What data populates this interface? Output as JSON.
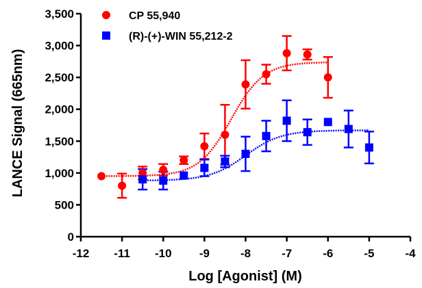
{
  "chart_data": {
    "type": "scatter",
    "title": "",
    "xlabel": "Log [Agonist] (M)",
    "ylabel": "LANCE Signal (665nm)",
    "xlim": [
      -12,
      -4
    ],
    "ylim": [
      0,
      3500
    ],
    "x_ticks": [
      "-12",
      "-11",
      "-10",
      "-9",
      "-8",
      "-7",
      "-6",
      "-5",
      "-4"
    ],
    "y_ticks": [
      "0",
      "500",
      "1,000",
      "1,500",
      "2,000",
      "2,500",
      "3,000",
      "3,500"
    ],
    "legend_position": "top-left",
    "series": [
      {
        "name": "CP 55,940",
        "color": "#ff0000",
        "marker": "circle",
        "points": [
          {
            "x": -11.5,
            "y": 950,
            "err": 0
          },
          {
            "x": -11.0,
            "y": 800,
            "err": 190
          },
          {
            "x": -10.5,
            "y": 1000,
            "err": 100
          },
          {
            "x": -10.0,
            "y": 1050,
            "err": 90
          },
          {
            "x": -9.5,
            "y": 1200,
            "err": 60
          },
          {
            "x": -9.0,
            "y": 1420,
            "err": 200
          },
          {
            "x": -8.5,
            "y": 1600,
            "err": 470
          },
          {
            "x": -8.0,
            "y": 2390,
            "err": 380
          },
          {
            "x": -7.5,
            "y": 2550,
            "err": 150
          },
          {
            "x": -7.0,
            "y": 2880,
            "err": 270
          },
          {
            "x": -6.5,
            "y": 2860,
            "err": 80
          },
          {
            "x": -6.0,
            "y": 2500,
            "err": 320
          }
        ],
        "fit": {
          "bottom": 950,
          "top": 2740,
          "log_ec50": -8.35,
          "hill": 1.1
        }
      },
      {
        "name": "(R)-(+)-WIN 55,212-2",
        "color": "#0000ff",
        "marker": "square",
        "points": [
          {
            "x": -10.5,
            "y": 900,
            "err": 160
          },
          {
            "x": -10.0,
            "y": 880,
            "err": 140
          },
          {
            "x": -9.5,
            "y": 960,
            "err": 0
          },
          {
            "x": -9.0,
            "y": 1080,
            "err": 130
          },
          {
            "x": -8.5,
            "y": 1180,
            "err": 90
          },
          {
            "x": -8.0,
            "y": 1300,
            "err": 270
          },
          {
            "x": -7.5,
            "y": 1580,
            "err": 240
          },
          {
            "x": -7.0,
            "y": 1820,
            "err": 320
          },
          {
            "x": -6.5,
            "y": 1640,
            "err": 200
          },
          {
            "x": -6.0,
            "y": 1800,
            "err": 0
          },
          {
            "x": -5.5,
            "y": 1690,
            "err": 290
          },
          {
            "x": -5.0,
            "y": 1400,
            "err": 250
          }
        ],
        "fit": {
          "bottom": 880,
          "top": 1670,
          "log_ec50": -8.0,
          "hill": 1.0
        }
      }
    ]
  }
}
